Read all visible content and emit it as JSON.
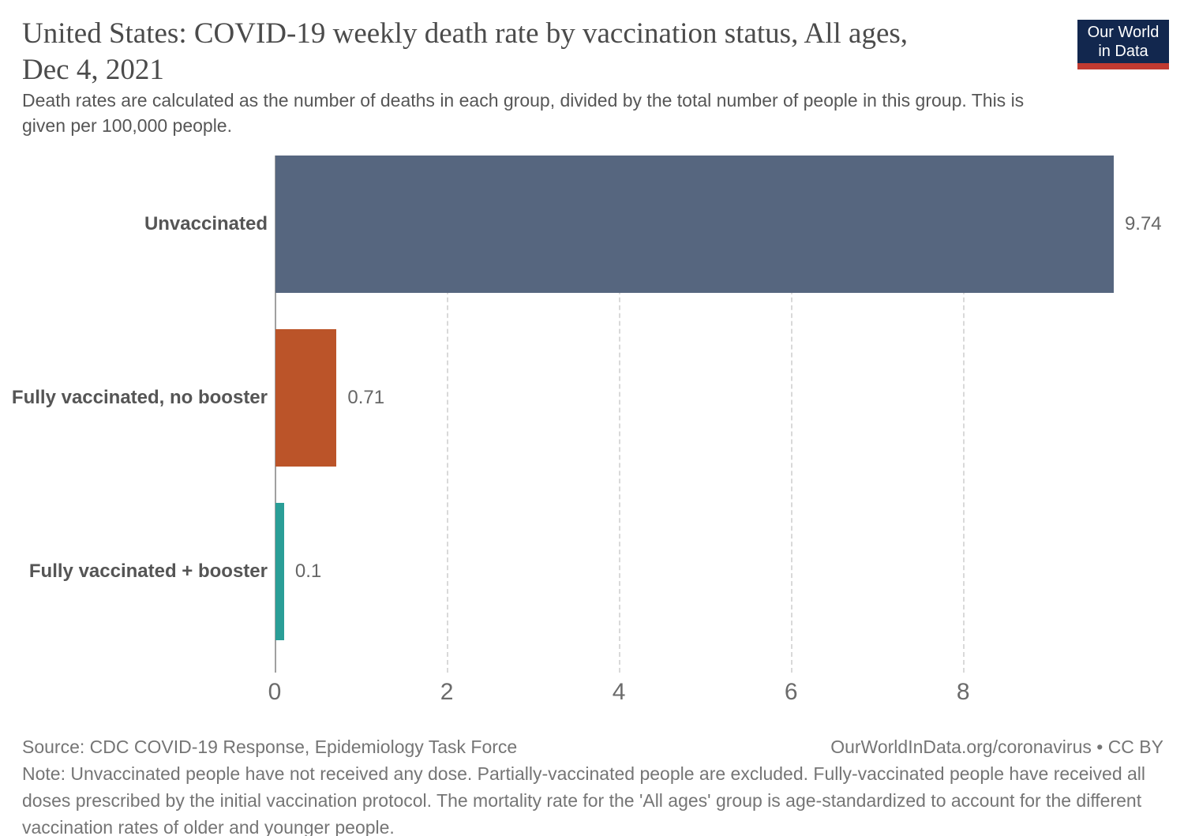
{
  "header": {
    "title": "United States: COVID-19 weekly death rate by vaccination status, All ages,\nDec 4, 2021",
    "subtitle": "Death rates are calculated as the number of deaths in each group, divided by the total number of people in this group. This is\ngiven per 100,000 people."
  },
  "logo": {
    "line1": "Our World",
    "line2": "in Data",
    "bg_color": "#12274e",
    "accent_color": "#c13a31"
  },
  "chart_data": {
    "type": "bar",
    "orientation": "horizontal",
    "title": "United States: COVID-19 weekly death rate by vaccination status, All ages, Dec 4, 2021",
    "categories": [
      "Unvaccinated",
      "Fully vaccinated, no booster",
      "Fully vaccinated + booster"
    ],
    "values": [
      9.74,
      0.71,
      0.1
    ],
    "value_labels": [
      "9.74",
      "0.71",
      "0.1"
    ],
    "bar_colors": [
      "#56667f",
      "#bb5429",
      "#2a9e97"
    ],
    "x_ticks": [
      0,
      2,
      4,
      6,
      8
    ],
    "xlim": [
      0,
      10.3
    ],
    "xlabel": "",
    "ylabel": "",
    "unit": "deaths per 100,000 people",
    "grid": "vertical-dashed",
    "legend": "none"
  },
  "footer": {
    "source": "Source: CDC COVID-19 Response, Epidemiology Task Force",
    "link": "OurWorldInData.org/coronavirus • CC BY",
    "note": "Note: Unvaccinated people have not received any dose. Partially-vaccinated people are excluded. Fully-vaccinated people have received all\ndoses prescribed by the initial vaccination protocol. The mortality rate for the 'All ages' group is age-standardized to account for the different\nvaccination rates of older and younger people."
  }
}
